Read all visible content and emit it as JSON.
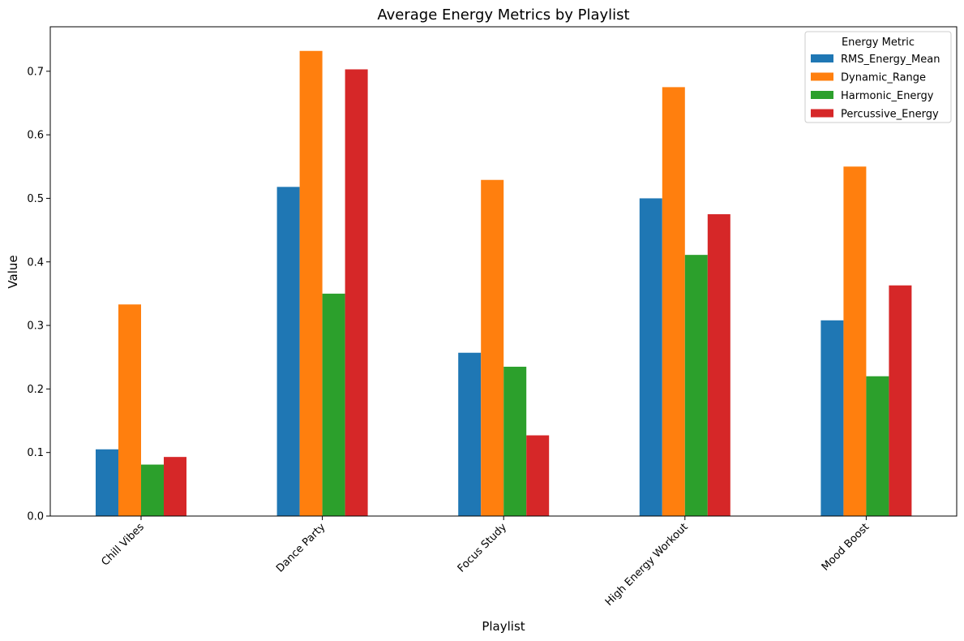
{
  "chart_data": {
    "type": "bar",
    "title": "Average Energy Metrics by Playlist",
    "xlabel": "Playlist",
    "ylabel": "Value",
    "categories": [
      "Chill Vibes",
      "Dance Party",
      "Focus Study",
      "High Energy Workout",
      "Mood Boost"
    ],
    "series": [
      {
        "name": "RMS_Energy_Mean",
        "color": "#1f77b4",
        "values": [
          0.105,
          0.518,
          0.257,
          0.5,
          0.308
        ]
      },
      {
        "name": "Dynamic_Range",
        "color": "#ff7f0e",
        "values": [
          0.333,
          0.732,
          0.529,
          0.675,
          0.55
        ]
      },
      {
        "name": "Harmonic_Energy",
        "color": "#2ca02c",
        "values": [
          0.081,
          0.35,
          0.235,
          0.411,
          0.22
        ]
      },
      {
        "name": "Percussive_Energy",
        "color": "#d62728",
        "values": [
          0.093,
          0.703,
          0.127,
          0.475,
          0.363
        ]
      }
    ],
    "ylim": [
      0,
      0.77
    ],
    "yticks": [
      0.0,
      0.1,
      0.2,
      0.3,
      0.4,
      0.5,
      0.6,
      0.7
    ],
    "ytick_labels": [
      "0.0",
      "0.1",
      "0.2",
      "0.3",
      "0.4",
      "0.5",
      "0.6",
      "0.7"
    ],
    "grid": false,
    "legend": {
      "title": "Energy Metric",
      "placement": "top-right"
    }
  }
}
